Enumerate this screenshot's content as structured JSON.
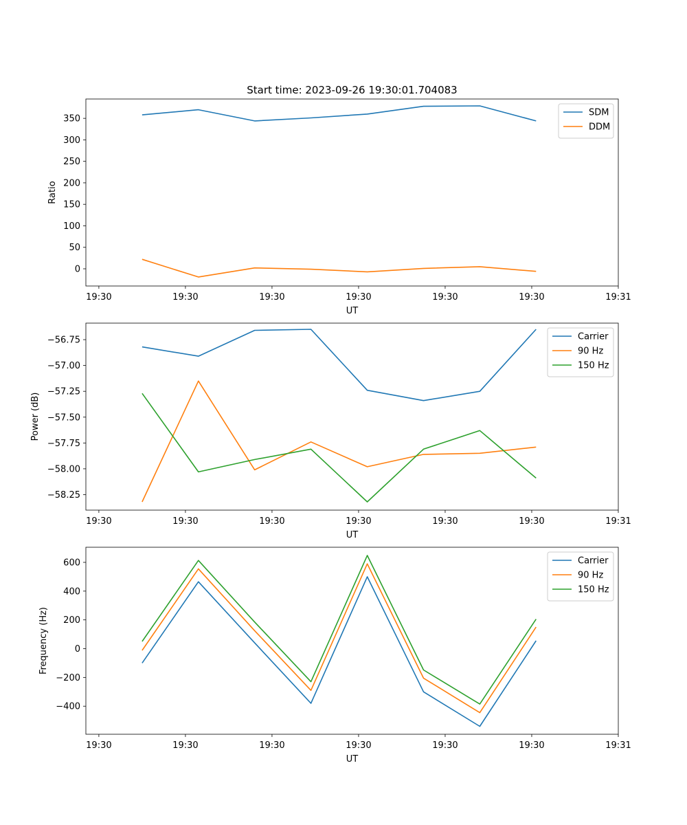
{
  "chart_data": [
    {
      "type": "line",
      "title": "Start time: 2023-09-26 19:30:01.704083",
      "xlabel": "UT",
      "ylabel": "Ratio",
      "xticks": [
        "19:30",
        "19:30",
        "19:30",
        "19:30",
        "19:30",
        "19:30",
        "19:31"
      ],
      "yticks": [
        0,
        50,
        100,
        150,
        200,
        250,
        300,
        350
      ],
      "xlim": [
        -0.15,
        6.0
      ],
      "ylim": [
        -40,
        395
      ],
      "x": [
        0.5,
        1.15,
        1.8,
        2.45,
        3.1,
        3.75,
        4.4,
        5.05
      ],
      "series": [
        {
          "name": "SDM",
          "color": "#1f77b4",
          "values": [
            358,
            370,
            344,
            351,
            360,
            378,
            379,
            344
          ]
        },
        {
          "name": "DDM",
          "color": "#ff7f0e",
          "values": [
            22,
            -19,
            2,
            -1,
            -7,
            1,
            5,
            -6
          ]
        }
      ],
      "legend": "top-right"
    },
    {
      "type": "line",
      "title": "",
      "xlabel": "UT",
      "ylabel": "Power (dB)",
      "xticks": [
        "19:30",
        "19:30",
        "19:30",
        "19:30",
        "19:30",
        "19:30",
        "19:31"
      ],
      "yticks": [
        -58.25,
        -58.0,
        -57.75,
        -57.5,
        -57.25,
        -57.0,
        -56.75
      ],
      "ytick_labels": [
        "−58.25",
        "−58.00",
        "−57.75",
        "−57.50",
        "−57.25",
        "−57.00",
        "−56.75"
      ],
      "xlim": [
        -0.15,
        6.0
      ],
      "ylim": [
        -58.4,
        -56.59
      ],
      "x": [
        0.5,
        1.15,
        1.8,
        2.45,
        3.1,
        3.75,
        4.4,
        5.05
      ],
      "series": [
        {
          "name": "Carrier",
          "color": "#1f77b4",
          "values": [
            -56.82,
            -56.91,
            -56.66,
            -56.65,
            -57.24,
            -57.34,
            -57.25,
            -56.65
          ]
        },
        {
          "name": "90 Hz",
          "color": "#ff7f0e",
          "values": [
            -58.32,
            -57.15,
            -58.01,
            -57.74,
            -57.98,
            -57.86,
            -57.85,
            -57.79
          ]
        },
        {
          "name": "150 Hz",
          "color": "#2ca02c",
          "values": [
            -57.27,
            -58.03,
            -57.91,
            -57.81,
            -58.32,
            -57.81,
            -57.63,
            -58.09
          ]
        }
      ],
      "legend": "top-right"
    },
    {
      "type": "line",
      "title": "",
      "xlabel": "UT",
      "ylabel": "Frequency (Hz)",
      "xticks": [
        "19:30",
        "19:30",
        "19:30",
        "19:30",
        "19:30",
        "19:30",
        "19:31"
      ],
      "yticks": [
        -400,
        -200,
        0,
        200,
        400,
        600
      ],
      "ytick_labels": [
        "−400",
        "−200",
        "0",
        "200",
        "400",
        "600"
      ],
      "xlim": [
        -0.15,
        6.0
      ],
      "ylim": [
        -595,
        705
      ],
      "x": [
        0.5,
        1.15,
        1.8,
        2.45,
        3.1,
        3.75,
        4.4,
        5.05
      ],
      "series": [
        {
          "name": "Carrier",
          "color": "#1f77b4",
          "values": [
            -100,
            465,
            40,
            -380,
            500,
            -300,
            -540,
            55
          ]
        },
        {
          "name": "90 Hz",
          "color": "#ff7f0e",
          "values": [
            -12,
            555,
            125,
            -290,
            590,
            -205,
            -445,
            150
          ]
        },
        {
          "name": "150 Hz",
          "color": "#2ca02c",
          "values": [
            50,
            613,
            185,
            -230,
            648,
            -148,
            -385,
            205
          ]
        }
      ],
      "legend": "top-right"
    }
  ]
}
